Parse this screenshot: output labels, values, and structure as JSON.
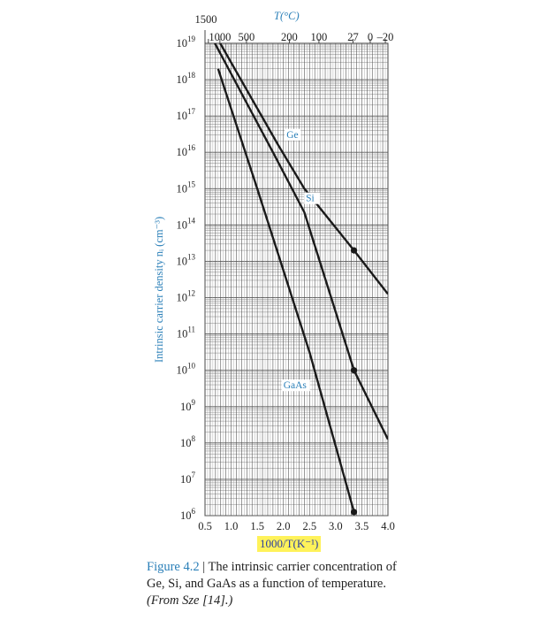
{
  "chart_data": {
    "type": "line",
    "x_label": "1000/T(K⁻¹)",
    "y_label": "Intrinsic carrier density nᵢ (cm⁻³)",
    "top_axis_title": "T(°C)",
    "x_range": [
      0.5,
      4.0
    ],
    "y_range_log10": [
      6,
      19
    ],
    "y_scale": "log",
    "grid": true,
    "x_ticks": [
      "0.5",
      "1.0",
      "1.5",
      "2.0",
      "2.5",
      "3.0",
      "3.5",
      "4.0"
    ],
    "y_tick_exponents": [
      "19",
      "18",
      "17",
      "16",
      "15",
      "14",
      "13",
      "12",
      "11",
      "10",
      "9",
      "8",
      "7",
      "6"
    ],
    "top_ticks": [
      {
        "label": "1500",
        "celsius": 1500
      },
      {
        "label": "1000",
        "celsius": 1000
      },
      {
        "label": "500",
        "celsius": 500
      },
      {
        "label": "200",
        "celsius": 200
      },
      {
        "label": "100",
        "celsius": 100
      },
      {
        "label": "27",
        "celsius": 27
      },
      {
        "label": "0",
        "celsius": 0
      },
      {
        "label": "–20",
        "celsius": -20
      }
    ],
    "series": [
      {
        "name": "Ge",
        "points": [
          [
            0.79,
            19
          ],
          [
            1.9,
            16.2
          ],
          [
            2.4,
            15.0
          ],
          [
            3.35,
            13.3
          ],
          [
            4.0,
            12.1
          ]
        ],
        "marker_x": 3.35,
        "label_x": 2.06,
        "label_y_log10": 16.4
      },
      {
        "name": "Si",
        "points": [
          [
            0.69,
            19
          ],
          [
            1.8,
            16.0
          ],
          [
            2.4,
            14.35
          ],
          [
            3.35,
            10.0
          ],
          [
            4.0,
            8.1
          ]
        ],
        "marker_x": 3.35,
        "label_x": 2.43,
        "label_y_log10": 14.65
      },
      {
        "name": "GaAs",
        "points": [
          [
            0.75,
            18.3
          ],
          [
            1.5,
            15.0
          ],
          [
            2.5,
            10.5
          ],
          [
            3.35,
            6.1
          ]
        ],
        "marker_x": 3.35,
        "label_x": 2.0,
        "label_y_log10": 9.5
      }
    ]
  },
  "caption": {
    "figure_number": "Figure 4.2",
    "separator": " | ",
    "text": "The intrinsic carrier concentration of Ge, Si, and GaAs as a function of temperature.",
    "source": "(From Sze [14].)"
  },
  "colors": {
    "accent": "#2a7fb8",
    "highlight": "#fff25a",
    "line": "#1a1a1a"
  }
}
